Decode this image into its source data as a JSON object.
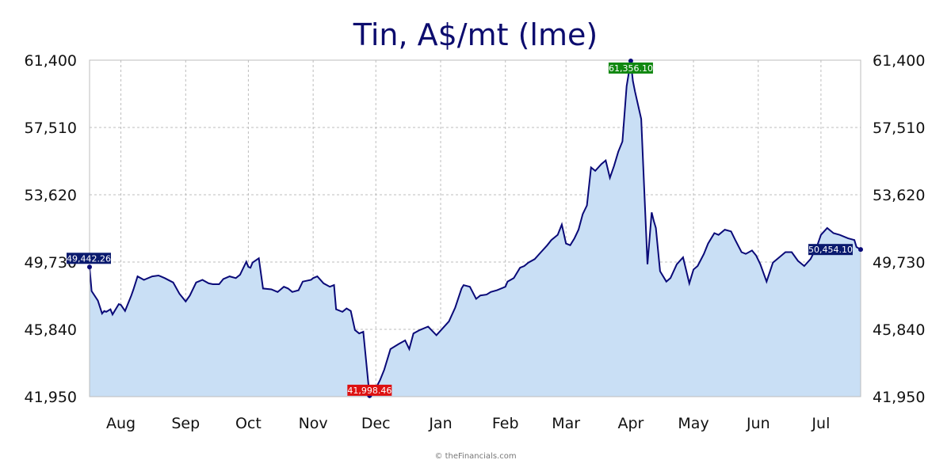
{
  "chart_data": {
    "type": "area",
    "title": "Tin, A$/mt (lme)",
    "credit": "© theFinancials.com",
    "ylim": [
      41950,
      61400
    ],
    "yticks": [
      "61,400",
      "57,510",
      "53,620",
      "49,730",
      "45,840",
      "41,950"
    ],
    "ytick_values": [
      61400,
      57510,
      53620,
      49730,
      45840,
      41950
    ],
    "xlim": [
      "2023-07-17",
      "2024-07-20"
    ],
    "xticks": [
      {
        "label": "Aug",
        "date": "2023-08-01"
      },
      {
        "label": "Sep",
        "date": "2023-09-01"
      },
      {
        "label": "Oct",
        "date": "2023-10-01"
      },
      {
        "label": "Nov",
        "date": "2023-11-01"
      },
      {
        "label": "Dec",
        "date": "2023-12-01"
      },
      {
        "label": "Jan",
        "date": "2024-01-01"
      },
      {
        "label": "Feb",
        "date": "2024-02-01"
      },
      {
        "label": "Mar",
        "date": "2024-03-01"
      },
      {
        "label": "Apr",
        "date": "2024-04-01"
      },
      {
        "label": "May",
        "date": "2024-05-01"
      },
      {
        "label": "Jun",
        "date": "2024-06-01"
      },
      {
        "label": "Jul",
        "date": "2024-07-01"
      }
    ],
    "grid": true,
    "colors": {
      "line": "#0a0a78",
      "fill": "#c9dff5",
      "start_label": "#0a1a6e",
      "high_label": "#118811",
      "low_label": "#dd1111",
      "end_label": "#0a1a6e"
    },
    "annotations": [
      {
        "kind": "start",
        "date": "2023-07-17",
        "value": 49442.26,
        "label": "49,442.26"
      },
      {
        "kind": "high",
        "date": "2024-04-01",
        "value": 61356.1,
        "label": "61,356.10"
      },
      {
        "kind": "low",
        "date": "2023-11-28",
        "value": 41998.46,
        "label": "41,998.46"
      },
      {
        "kind": "end",
        "date": "2024-07-20",
        "value": 50454.1,
        "label": "50,454.10"
      }
    ],
    "series": [
      {
        "x": [
          "2023-07-17",
          "2023-07-18",
          "2023-07-21",
          "2023-07-23",
          "2023-07-24",
          "2023-07-25",
          "2023-07-27",
          "2023-07-28",
          "2023-07-31",
          "2023-08-01",
          "2023-08-03",
          "2023-08-06",
          "2023-08-07",
          "2023-08-09",
          "2023-08-12",
          "2023-08-16",
          "2023-08-19",
          "2023-08-20",
          "2023-08-22",
          "2023-08-26",
          "2023-08-29",
          "2023-09-01",
          "2023-09-03",
          "2023-09-06",
          "2023-09-09",
          "2023-09-12",
          "2023-09-14",
          "2023-09-17",
          "2023-09-19",
          "2023-09-22",
          "2023-09-25",
          "2023-09-27",
          "2023-09-30",
          "2023-10-01",
          "2023-10-02",
          "2023-10-03",
          "2023-10-06",
          "2023-10-08",
          "2023-10-12",
          "2023-10-15",
          "2023-10-16",
          "2023-10-17",
          "2023-10-18",
          "2023-10-20",
          "2023-10-22",
          "2023-10-25",
          "2023-10-27",
          "2023-10-31",
          "2023-11-01",
          "2023-11-03",
          "2023-11-06",
          "2023-11-09",
          "2023-11-11",
          "2023-11-12",
          "2023-11-15",
          "2023-11-17",
          "2023-11-19",
          "2023-11-21",
          "2023-11-23",
          "2023-11-25",
          "2023-11-28",
          "2023-11-30",
          "2023-12-03",
          "2023-12-05",
          "2023-12-08",
          "2023-12-12",
          "2023-12-15",
          "2023-12-17",
          "2023-12-19",
          "2023-12-22",
          "2023-12-26",
          "2023-12-30",
          "2024-01-02",
          "2024-01-05",
          "2024-01-08",
          "2024-01-11",
          "2024-01-12",
          "2024-01-15",
          "2024-01-18",
          "2024-01-20",
          "2024-01-23",
          "2024-01-25",
          "2024-01-28",
          "2024-02-01",
          "2024-02-02",
          "2024-02-05",
          "2024-02-08",
          "2024-02-10",
          "2024-02-12",
          "2024-02-15",
          "2024-02-18",
          "2024-02-21",
          "2024-02-23",
          "2024-02-26",
          "2024-02-28",
          "2024-03-01",
          "2024-03-03",
          "2024-03-05",
          "2024-03-07",
          "2024-03-09",
          "2024-03-11",
          "2024-03-13",
          "2024-03-15",
          "2024-03-18",
          "2024-03-20",
          "2024-03-22",
          "2024-03-24",
          "2024-03-26",
          "2024-03-28",
          "2024-03-30",
          "2024-04-01",
          "2024-04-02",
          "2024-04-03",
          "2024-04-06",
          "2024-04-09",
          "2024-04-11",
          "2024-04-12",
          "2024-04-13",
          "2024-04-15",
          "2024-04-18",
          "2024-04-20",
          "2024-04-23",
          "2024-04-26",
          "2024-04-29",
          "2024-05-01",
          "2024-05-03",
          "2024-05-06",
          "2024-05-08",
          "2024-05-11",
          "2024-05-13",
          "2024-05-16",
          "2024-05-19",
          "2024-05-21",
          "2024-05-24",
          "2024-05-26",
          "2024-05-29",
          "2024-05-31",
          "2024-06-02",
          "2024-06-05",
          "2024-06-08",
          "2024-06-11",
          "2024-06-14",
          "2024-06-17",
          "2024-06-20",
          "2024-06-23",
          "2024-06-26",
          "2024-06-29",
          "2024-07-01",
          "2024-07-04",
          "2024-07-07",
          "2024-07-10",
          "2024-07-14",
          "2024-07-17",
          "2024-07-18",
          "2024-07-20"
        ],
        "values": [
          49442,
          48050,
          47500,
          46750,
          46900,
          46850,
          47000,
          46700,
          47300,
          47250,
          46900,
          47800,
          48150,
          48900,
          48700,
          48900,
          48950,
          48900,
          48800,
          48550,
          47900,
          47450,
          47800,
          48550,
          48700,
          48500,
          48450,
          48450,
          48750,
          48900,
          48800,
          49000,
          49750,
          49450,
          49400,
          49700,
          49950,
          48200,
          48150,
          48000,
          48100,
          48200,
          48300,
          48200,
          48000,
          48100,
          48600,
          48700,
          48800,
          48900,
          48500,
          48300,
          48400,
          47000,
          46850,
          47050,
          46900,
          45800,
          45600,
          45700,
          41998,
          42200,
          42900,
          43500,
          44700,
          45000,
          45200,
          44700,
          45600,
          45800,
          46000,
          45500,
          45900,
          46300,
          47100,
          48200,
          48400,
          48300,
          47600,
          47800,
          47850,
          48000,
          48100,
          48300,
          48600,
          48800,
          49400,
          49500,
          49700,
          49900,
          50300,
          50700,
          51000,
          51300,
          51900,
          50800,
          50700,
          51100,
          51600,
          52500,
          53000,
          55200,
          55000,
          55400,
          55600,
          54600,
          55300,
          56100,
          56700,
          59900,
          61356,
          60200,
          59600,
          58000,
          49600,
          52600,
          52100,
          51700,
          49200,
          48600,
          48800,
          49600,
          50000,
          48500,
          49300,
          49500,
          50200,
          50800,
          51400,
          51300,
          51600,
          51500,
          51000,
          50300,
          50200,
          50400,
          50100,
          49600,
          48600,
          49700,
          50000,
          50300,
          50300,
          49800,
          49500,
          49900,
          50600,
          51300,
          51700,
          51400,
          51300,
          51100,
          51000,
          50600,
          50454
        ]
      }
    ]
  }
}
